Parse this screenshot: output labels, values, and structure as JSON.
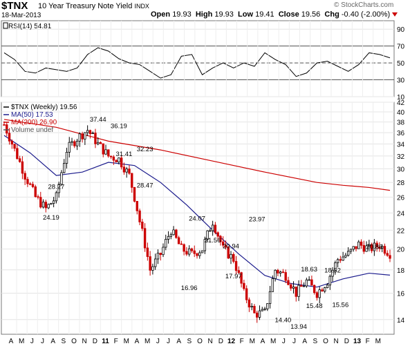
{
  "header": {
    "symbol": "$TNX",
    "name": "10 Year Treasury Note Yield",
    "exchange": "INDX",
    "date": "18-Mar-2013",
    "open_label": "Open",
    "open": "19.93",
    "high_label": "High",
    "high": "19.93",
    "low_label": "Low",
    "low": "19.41",
    "close_label": "Close",
    "close": "19.56",
    "chg_label": "Chg",
    "chg": "-0.40 (-2.00%)",
    "brand": "© StockCharts.com",
    "colors": {
      "down": "#cc0000",
      "up": "#000000"
    }
  },
  "chart_data": [
    {
      "type": "line",
      "panel": "rsi",
      "legend": "RSI(14) 54.81",
      "ylim": [
        10,
        100
      ],
      "yticks": [
        10,
        30,
        50,
        70,
        90
      ],
      "reference_lines": [
        30,
        50,
        70
      ],
      "x": [
        0,
        4,
        8,
        12,
        16,
        20,
        24,
        28,
        32,
        36,
        40,
        44,
        48,
        52,
        56,
        60,
        64,
        68,
        72,
        76,
        80,
        84,
        88,
        92,
        96,
        100,
        104,
        108,
        112,
        116,
        120,
        124,
        128,
        132,
        136,
        140,
        144,
        148
      ],
      "values": [
        62,
        54,
        40,
        38,
        44,
        42,
        40,
        44,
        60,
        68,
        64,
        55,
        50,
        48,
        40,
        32,
        36,
        58,
        60,
        36,
        44,
        50,
        44,
        50,
        46,
        62,
        54,
        48,
        34,
        38,
        50,
        52,
        46,
        40,
        48,
        62,
        60,
        56
      ],
      "color": "#000000"
    },
    {
      "type": "candlestick",
      "panel": "price",
      "title": "$TNX (Weekly) 19.56",
      "legend": [
        {
          "name": "$TNX (Weekly) 19.56",
          "color": "#000000"
        },
        {
          "name": "MA(50) 17.53",
          "color": "#1a1a8c"
        },
        {
          "name": "MA(200) 26.90",
          "color": "#cc0000"
        },
        {
          "name": "Volume undef",
          "color": "#555555"
        }
      ],
      "ylim": [
        13,
        42
      ],
      "yticks": [
        14,
        16,
        18,
        20,
        22,
        24,
        26,
        28,
        30,
        32,
        34,
        36,
        38,
        40,
        42
      ],
      "scale": "log",
      "x_axis_labels": [
        "A",
        "M",
        "J",
        "J",
        "A",
        "S",
        "O",
        "N",
        "D",
        "11",
        "F",
        "M",
        "A",
        "M",
        "J",
        "J",
        "A",
        "S",
        "O",
        "N",
        "D",
        "12",
        "F",
        "M",
        "A",
        "M",
        "J",
        "J",
        "A",
        "S",
        "O",
        "N",
        "D",
        "13",
        "F",
        "M"
      ],
      "x_axis_bold": [
        "11",
        "12",
        "13"
      ],
      "price_path": {
        "x": [
          0,
          4,
          8,
          12,
          16,
          20,
          24,
          28,
          32,
          36,
          40,
          44,
          48,
          52,
          56,
          60,
          64,
          68,
          72,
          76,
          80,
          84,
          88,
          92,
          96,
          100,
          104,
          108,
          112,
          116,
          120,
          124,
          128,
          132,
          136,
          140,
          144,
          148
        ],
        "values": [
          37.5,
          33,
          29,
          26,
          24.5,
          26,
          33,
          35,
          36.5,
          34,
          32,
          31.5,
          29,
          23,
          18,
          19.5,
          22,
          20,
          19.5,
          20,
          23,
          20,
          19,
          16,
          14.4,
          14.5,
          18,
          17.5,
          16,
          17,
          16,
          17,
          19,
          19.5,
          20.5,
          20,
          20.4,
          19.56
        ]
      },
      "ma50": {
        "x": [
          0,
          10,
          20,
          30,
          40,
          50,
          60,
          70,
          80,
          90,
          100,
          110,
          120,
          130,
          140,
          148
        ],
        "values": [
          35.5,
          32.5,
          29,
          29.5,
          31,
          30.5,
          28,
          25,
          22,
          19.5,
          17.5,
          16.8,
          16.5,
          17.2,
          17.7,
          17.53
        ]
      },
      "ma200": {
        "x": [
          0,
          20,
          40,
          60,
          80,
          100,
          120,
          130,
          140,
          148
        ],
        "values": [
          38.5,
          37,
          34.5,
          33,
          31.2,
          29.5,
          28,
          27.6,
          27.3,
          26.9
        ]
      },
      "annotations": [
        {
          "text": "37.44",
          "x": 36,
          "y": 37.44
        },
        {
          "text": "36.19",
          "x": 44,
          "y": 36.19
        },
        {
          "text": "32.23",
          "x": 54,
          "y": 32.23
        },
        {
          "text": "31.41",
          "x": 46,
          "y": 31.41
        },
        {
          "text": "28.27",
          "x": 20,
          "y": 28.27
        },
        {
          "text": "28.47",
          "x": 54,
          "y": 28.47
        },
        {
          "text": "24.19",
          "x": 18,
          "y": 24.19
        },
        {
          "text": "24.07",
          "x": 74,
          "y": 24.07
        },
        {
          "text": "21.56",
          "x": 80,
          "y": 21.56
        },
        {
          "text": "20.94",
          "x": 87,
          "y": 20.94
        },
        {
          "text": "23.97",
          "x": 97,
          "y": 23.97
        },
        {
          "text": "17.97",
          "x": 88,
          "y": 17.97
        },
        {
          "text": "16.96",
          "x": 71,
          "y": 16.96
        },
        {
          "text": "18.63",
          "x": 117,
          "y": 18.63
        },
        {
          "text": "18.52",
          "x": 126,
          "y": 18.52
        },
        {
          "text": "15.48",
          "x": 119,
          "y": 15.48
        },
        {
          "text": "15.56",
          "x": 129,
          "y": 15.56
        },
        {
          "text": "14.40",
          "x": 107,
          "y": 14.4
        },
        {
          "text": "13.94",
          "x": 113,
          "y": 13.94
        },
        {
          "text": "20.86",
          "x": 142,
          "y": 20.86
        }
      ]
    }
  ]
}
